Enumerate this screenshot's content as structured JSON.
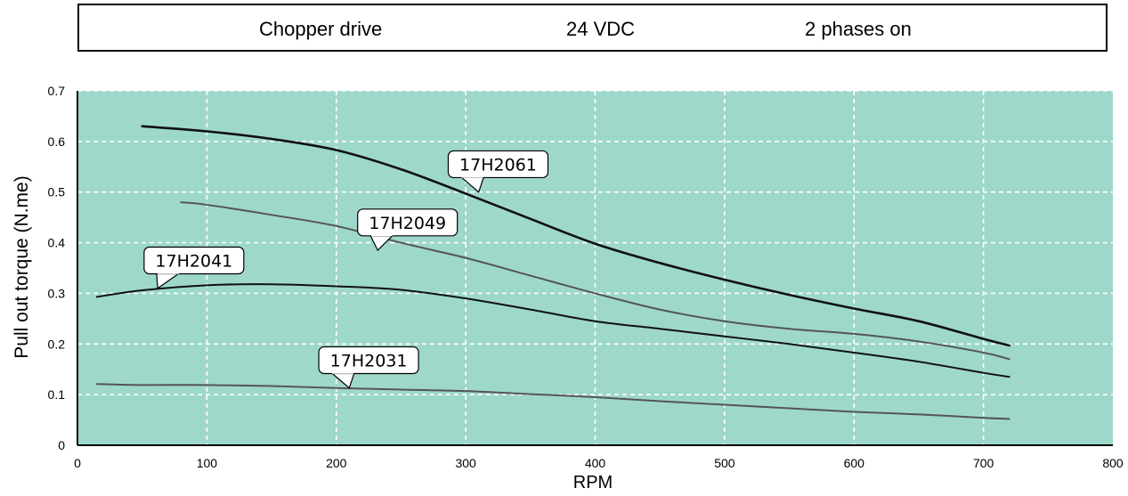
{
  "header": {
    "drive": "Chopper drive",
    "voltage": "24 VDC",
    "phases": "2 phases on"
  },
  "colors": {
    "plot_background": "#9dd8cb",
    "grid": "#ffffff",
    "axis": "#000000",
    "callout_fill": "#ffffff"
  },
  "chart_data": {
    "type": "line",
    "title": "",
    "xlabel": "RPM",
    "ylabel": "Pull out torque (N.me)",
    "xlim": [
      0,
      800
    ],
    "ylim": [
      0,
      0.7
    ],
    "x_ticks": [
      "0",
      "100",
      "200",
      "300",
      "400",
      "500",
      "600",
      "700",
      "800"
    ],
    "y_ticks": [
      "0",
      "0.1",
      "0.2",
      "0.3",
      "0.4",
      "0.5",
      "0.6",
      "0.7"
    ],
    "grid": true,
    "series": [
      {
        "name": "17H2061",
        "color": "#111111",
        "width": 2.6,
        "label_at": [
          310,
          0.5
        ],
        "callout": [
          325,
          0.555
        ],
        "points": [
          [
            50,
            0.63
          ],
          [
            100,
            0.62
          ],
          [
            150,
            0.605
          ],
          [
            200,
            0.583
          ],
          [
            250,
            0.545
          ],
          [
            300,
            0.497
          ],
          [
            350,
            0.447
          ],
          [
            400,
            0.398
          ],
          [
            450,
            0.36
          ],
          [
            500,
            0.327
          ],
          [
            550,
            0.297
          ],
          [
            600,
            0.27
          ],
          [
            650,
            0.245
          ],
          [
            700,
            0.21
          ],
          [
            720,
            0.197
          ]
        ]
      },
      {
        "name": "17H2049",
        "color": "#555555",
        "width": 2,
        "label_at": [
          232,
          0.385
        ],
        "callout": [
          255,
          0.44
        ],
        "points": [
          [
            80,
            0.48
          ],
          [
            100,
            0.475
          ],
          [
            150,
            0.455
          ],
          [
            200,
            0.433
          ],
          [
            250,
            0.4
          ],
          [
            300,
            0.37
          ],
          [
            350,
            0.335
          ],
          [
            400,
            0.3
          ],
          [
            450,
            0.268
          ],
          [
            500,
            0.245
          ],
          [
            550,
            0.23
          ],
          [
            600,
            0.22
          ],
          [
            650,
            0.205
          ],
          [
            700,
            0.183
          ],
          [
            720,
            0.17
          ]
        ]
      },
      {
        "name": "17H2041",
        "color": "#111111",
        "width": 2,
        "label_at": [
          62,
          0.31
        ],
        "callout": [
          90,
          0.365
        ],
        "points": [
          [
            15,
            0.293
          ],
          [
            50,
            0.306
          ],
          [
            100,
            0.316
          ],
          [
            150,
            0.318
          ],
          [
            200,
            0.314
          ],
          [
            250,
            0.307
          ],
          [
            300,
            0.29
          ],
          [
            350,
            0.268
          ],
          [
            400,
            0.245
          ],
          [
            450,
            0.23
          ],
          [
            500,
            0.215
          ],
          [
            550,
            0.2
          ],
          [
            600,
            0.183
          ],
          [
            650,
            0.165
          ],
          [
            700,
            0.143
          ],
          [
            720,
            0.135
          ]
        ]
      },
      {
        "name": "17H2031",
        "color": "#555555",
        "width": 2,
        "label_at": [
          210,
          0.113
        ],
        "callout": [
          225,
          0.168
        ],
        "points": [
          [
            15,
            0.121
          ],
          [
            50,
            0.119
          ],
          [
            100,
            0.119
          ],
          [
            150,
            0.117
          ],
          [
            200,
            0.113
          ],
          [
            250,
            0.11
          ],
          [
            300,
            0.107
          ],
          [
            350,
            0.101
          ],
          [
            400,
            0.095
          ],
          [
            450,
            0.087
          ],
          [
            500,
            0.08
          ],
          [
            550,
            0.073
          ],
          [
            600,
            0.066
          ],
          [
            650,
            0.061
          ],
          [
            700,
            0.054
          ],
          [
            720,
            0.052
          ]
        ]
      }
    ]
  }
}
